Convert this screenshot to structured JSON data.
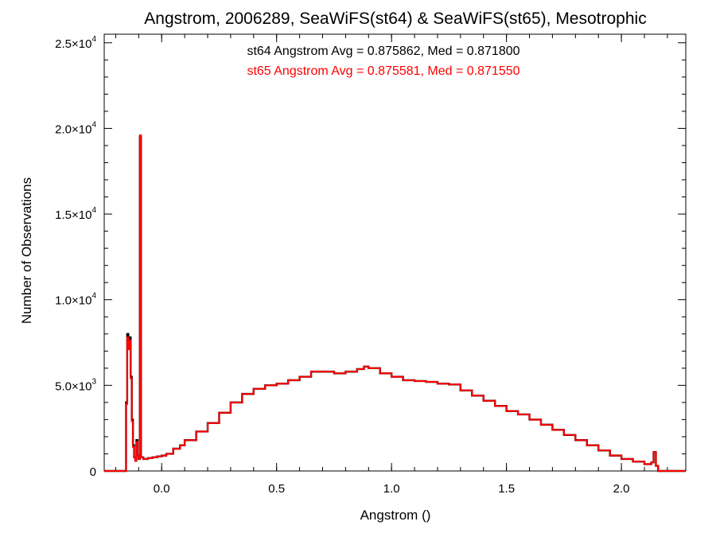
{
  "chart_data": {
    "type": "line",
    "step": true,
    "title": "Angstrom, 2006289, SeaWiFS(st64) & SeaWiFS(st65), Mesotrophic",
    "xlabel": "Angstrom ()",
    "ylabel": "Number of Observations",
    "xlim": [
      -0.25,
      2.28
    ],
    "ylim": [
      0,
      25500
    ],
    "grid": false,
    "x_ticks": [
      {
        "value": 0.0,
        "label": "0.0"
      },
      {
        "value": 0.5,
        "label": "0.5"
      },
      {
        "value": 1.0,
        "label": "1.0"
      },
      {
        "value": 1.5,
        "label": "1.5"
      },
      {
        "value": 2.0,
        "label": "2.0"
      }
    ],
    "y_ticks": [
      {
        "value": 0,
        "mant": "0",
        "exp": ""
      },
      {
        "value": 5000,
        "mant": "5.0×10",
        "exp": "3"
      },
      {
        "value": 10000,
        "mant": "1.0×10",
        "exp": "4"
      },
      {
        "value": 15000,
        "mant": "1.5×10",
        "exp": "4"
      },
      {
        "value": 20000,
        "mant": "2.0×10",
        "exp": "4"
      },
      {
        "value": 25000,
        "mant": "2.5×10",
        "exp": "4"
      }
    ],
    "annotations": [
      {
        "text": "st64 Angstrom Avg = 0.875862, Med = 0.871800",
        "color": "#000000"
      },
      {
        "text": "st65 Angstrom Avg = 0.875581, Med = 0.871550",
        "color": "#ff0000"
      }
    ],
    "series": [
      {
        "color": "#000000",
        "points": [
          [
            -0.25,
            0
          ],
          [
            -0.16,
            0
          ],
          [
            -0.155,
            4000
          ],
          [
            -0.15,
            8000
          ],
          [
            -0.145,
            7200
          ],
          [
            -0.14,
            7800
          ],
          [
            -0.135,
            5500
          ],
          [
            -0.13,
            3000
          ],
          [
            -0.125,
            1500
          ],
          [
            -0.12,
            800
          ],
          [
            -0.115,
            600
          ],
          [
            -0.11,
            1800
          ],
          [
            -0.105,
            900
          ],
          [
            -0.1,
            700
          ],
          [
            -0.095,
            19500
          ],
          [
            -0.09,
            800
          ],
          [
            -0.08,
            700
          ],
          [
            -0.06,
            750
          ],
          [
            -0.04,
            800
          ],
          [
            -0.02,
            850
          ],
          [
            0.0,
            900
          ],
          [
            0.02,
            1000
          ],
          [
            0.05,
            1300
          ],
          [
            0.08,
            1500
          ],
          [
            0.1,
            1800
          ],
          [
            0.15,
            2300
          ],
          [
            0.2,
            2800
          ],
          [
            0.25,
            3400
          ],
          [
            0.3,
            4000
          ],
          [
            0.35,
            4500
          ],
          [
            0.4,
            4800
          ],
          [
            0.45,
            5000
          ],
          [
            0.5,
            5100
          ],
          [
            0.55,
            5300
          ],
          [
            0.6,
            5500
          ],
          [
            0.65,
            5800
          ],
          [
            0.7,
            5800
          ],
          [
            0.75,
            5700
          ],
          [
            0.8,
            5800
          ],
          [
            0.85,
            5950
          ],
          [
            0.88,
            6100
          ],
          [
            0.9,
            6000
          ],
          [
            0.95,
            5700
          ],
          [
            1.0,
            5500
          ],
          [
            1.05,
            5300
          ],
          [
            1.1,
            5250
          ],
          [
            1.15,
            5200
          ],
          [
            1.2,
            5100
          ],
          [
            1.25,
            5050
          ],
          [
            1.3,
            4700
          ],
          [
            1.35,
            4400
          ],
          [
            1.4,
            4100
          ],
          [
            1.45,
            3800
          ],
          [
            1.5,
            3500
          ],
          [
            1.55,
            3300
          ],
          [
            1.6,
            3000
          ],
          [
            1.65,
            2700
          ],
          [
            1.7,
            2400
          ],
          [
            1.75,
            2100
          ],
          [
            1.8,
            1800
          ],
          [
            1.85,
            1500
          ],
          [
            1.9,
            1200
          ],
          [
            1.95,
            900
          ],
          [
            2.0,
            700
          ],
          [
            2.05,
            550
          ],
          [
            2.1,
            400
          ],
          [
            2.13,
            500
          ],
          [
            2.14,
            1100
          ],
          [
            2.15,
            300
          ],
          [
            2.16,
            0
          ],
          [
            2.28,
            0
          ]
        ]
      },
      {
        "color": "#ff0000",
        "points": [
          [
            -0.25,
            0
          ],
          [
            -0.16,
            0
          ],
          [
            -0.155,
            3900
          ],
          [
            -0.15,
            7800
          ],
          [
            -0.145,
            7100
          ],
          [
            -0.14,
            7600
          ],
          [
            -0.135,
            5400
          ],
          [
            -0.13,
            2900
          ],
          [
            -0.125,
            1400
          ],
          [
            -0.12,
            800
          ],
          [
            -0.115,
            600
          ],
          [
            -0.11,
            1700
          ],
          [
            -0.105,
            900
          ],
          [
            -0.1,
            700
          ],
          [
            -0.095,
            19600
          ],
          [
            -0.09,
            800
          ],
          [
            -0.08,
            700
          ],
          [
            -0.06,
            750
          ],
          [
            -0.04,
            800
          ],
          [
            -0.02,
            850
          ],
          [
            0.0,
            900
          ],
          [
            0.02,
            1000
          ],
          [
            0.05,
            1300
          ],
          [
            0.08,
            1500
          ],
          [
            0.1,
            1800
          ],
          [
            0.15,
            2300
          ],
          [
            0.2,
            2800
          ],
          [
            0.25,
            3400
          ],
          [
            0.3,
            4000
          ],
          [
            0.35,
            4500
          ],
          [
            0.4,
            4800
          ],
          [
            0.45,
            5000
          ],
          [
            0.5,
            5100
          ],
          [
            0.55,
            5300
          ],
          [
            0.6,
            5500
          ],
          [
            0.65,
            5800
          ],
          [
            0.7,
            5800
          ],
          [
            0.75,
            5700
          ],
          [
            0.8,
            5800
          ],
          [
            0.85,
            5950
          ],
          [
            0.88,
            6100
          ],
          [
            0.9,
            6000
          ],
          [
            0.95,
            5700
          ],
          [
            1.0,
            5500
          ],
          [
            1.05,
            5300
          ],
          [
            1.1,
            5250
          ],
          [
            1.15,
            5200
          ],
          [
            1.2,
            5100
          ],
          [
            1.25,
            5050
          ],
          [
            1.3,
            4700
          ],
          [
            1.35,
            4400
          ],
          [
            1.4,
            4100
          ],
          [
            1.45,
            3800
          ],
          [
            1.5,
            3500
          ],
          [
            1.55,
            3300
          ],
          [
            1.6,
            3000
          ],
          [
            1.65,
            2700
          ],
          [
            1.7,
            2400
          ],
          [
            1.75,
            2100
          ],
          [
            1.8,
            1800
          ],
          [
            1.85,
            1500
          ],
          [
            1.9,
            1200
          ],
          [
            1.95,
            900
          ],
          [
            2.0,
            700
          ],
          [
            2.05,
            550
          ],
          [
            2.1,
            400
          ],
          [
            2.13,
            500
          ],
          [
            2.14,
            1100
          ],
          [
            2.15,
            300
          ],
          [
            2.16,
            0
          ],
          [
            2.28,
            0
          ]
        ]
      }
    ]
  }
}
